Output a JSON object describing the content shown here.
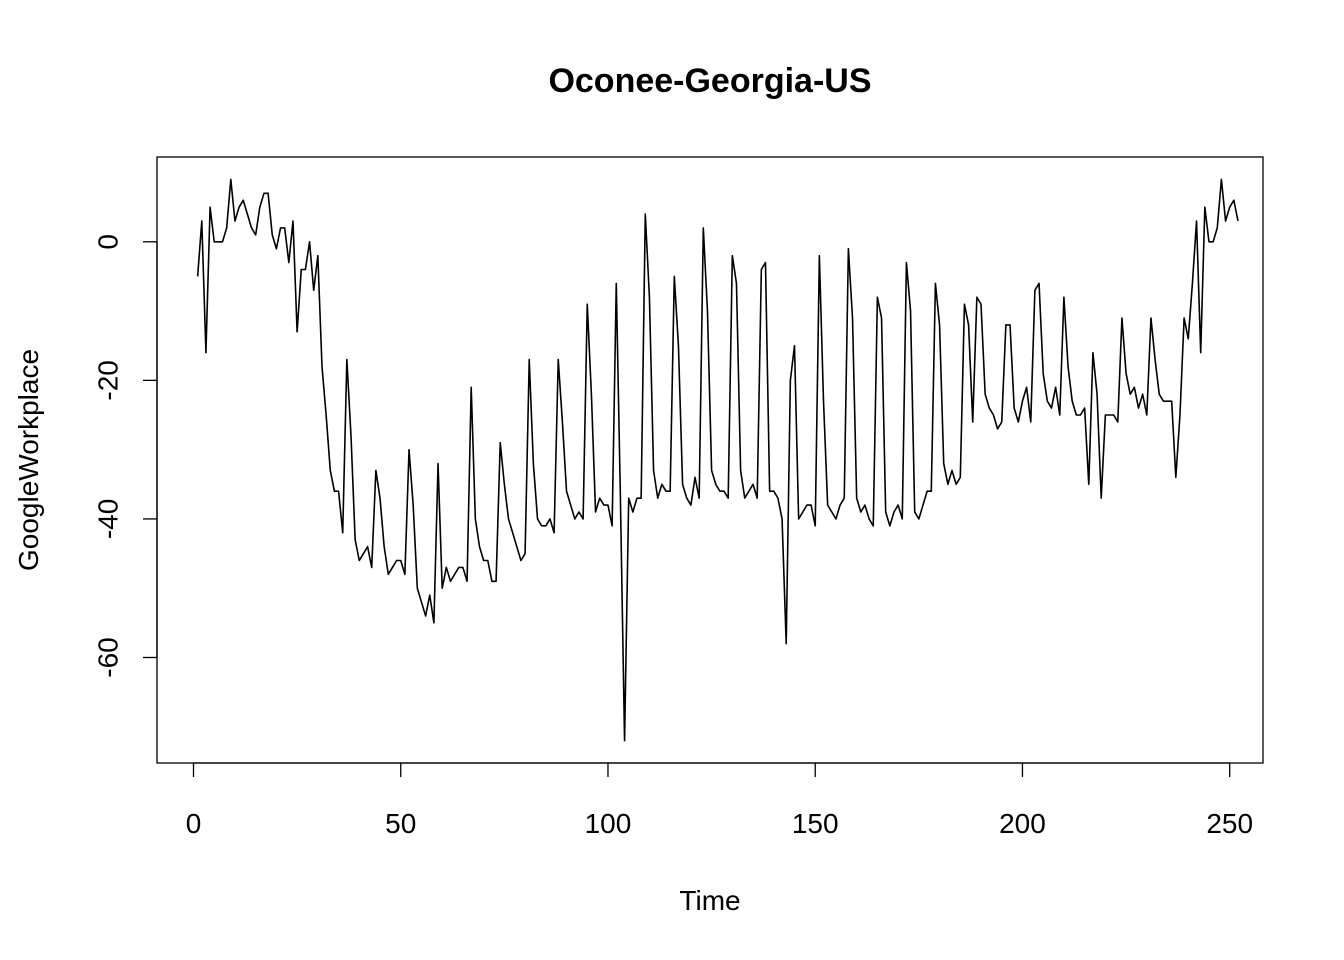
{
  "chart_data": {
    "type": "line",
    "title": "Oconee-Georgia-US",
    "xlabel": "Time",
    "ylabel": "GoogleWorkplace",
    "xlim": [
      1,
      248
    ],
    "ylim": [
      -72,
      9
    ],
    "x_ticks": [
      0,
      50,
      100,
      150,
      200,
      250
    ],
    "y_ticks": [
      -60,
      -40,
      -20,
      0
    ],
    "grid": false,
    "legend": "none",
    "series": [
      {
        "color": "#000000",
        "x_start": 1,
        "x_step": 1,
        "values": [
          -5,
          3,
          -16,
          5,
          0,
          0,
          0,
          2,
          9,
          3,
          5,
          6,
          4,
          2,
          1,
          5,
          7,
          7,
          1,
          -1,
          2,
          2,
          -3,
          3,
          -13,
          -4,
          -4,
          0,
          -7,
          -2,
          -18,
          -25,
          -33,
          -36,
          -36,
          -42,
          -17,
          -28,
          -43,
          -46,
          -45,
          -44,
          -47,
          -33,
          -37,
          -44,
          -48,
          -47,
          -46,
          -46,
          -48,
          -30,
          -38,
          -50,
          -52,
          -54,
          -51,
          -55,
          -32,
          -50,
          -47,
          -49,
          -48,
          -47,
          -47,
          -49,
          -21,
          -40,
          -44,
          -46,
          -46,
          -49,
          -49,
          -29,
          -35,
          -40,
          -42,
          -44,
          -46,
          -45,
          -17,
          -32,
          -40,
          -41,
          -41,
          -40,
          -42,
          -17,
          -26,
          -36,
          -38,
          -40,
          -39,
          -40,
          -9,
          -22,
          -39,
          -37,
          -38,
          -38,
          -41,
          -6,
          -37,
          -72,
          -37,
          -39,
          -37,
          -37,
          4,
          -8,
          -33,
          -37,
          -35,
          -36,
          -36,
          -5,
          -15,
          -35,
          -37,
          -38,
          -34,
          -37,
          2,
          -10,
          -33,
          -35,
          -36,
          -36,
          -37,
          -2,
          -6,
          -33,
          -37,
          -36,
          -35,
          -37,
          -4,
          -3,
          -36,
          -36,
          -37,
          -40,
          -58,
          -20,
          -15,
          -40,
          -39,
          -38,
          -38,
          -41,
          -2,
          -23,
          -38,
          -39,
          -40,
          -38,
          -37,
          -1,
          -11,
          -37,
          -39,
          -38,
          -40,
          -41,
          -8,
          -11,
          -39,
          -41,
          -39,
          -38,
          -40,
          -3,
          -10,
          -39,
          -40,
          -38,
          -36,
          -36,
          -6,
          -12,
          -32,
          -35,
          -33,
          -35,
          -34,
          -9,
          -12,
          -26,
          -8,
          -9,
          -22,
          -24,
          -25,
          -27,
          -26,
          -12,
          -12,
          -24,
          -26,
          -23,
          -21,
          -26,
          -7,
          -6,
          -19,
          -23,
          -24,
          -21,
          -25,
          -8,
          -18,
          -23,
          -25,
          -25,
          -24,
          -35,
          -16,
          -22,
          -37,
          -25,
          -25,
          -25,
          -26,
          -11,
          -19,
          -22,
          -21,
          -24,
          -22,
          -25,
          -11,
          -17,
          -22,
          -23,
          -23,
          -23,
          -34,
          -25,
          -11,
          -14,
          -6,
          3,
          -16,
          5,
          0,
          0,
          2,
          9,
          3,
          5,
          6,
          3
        ]
      }
    ]
  }
}
